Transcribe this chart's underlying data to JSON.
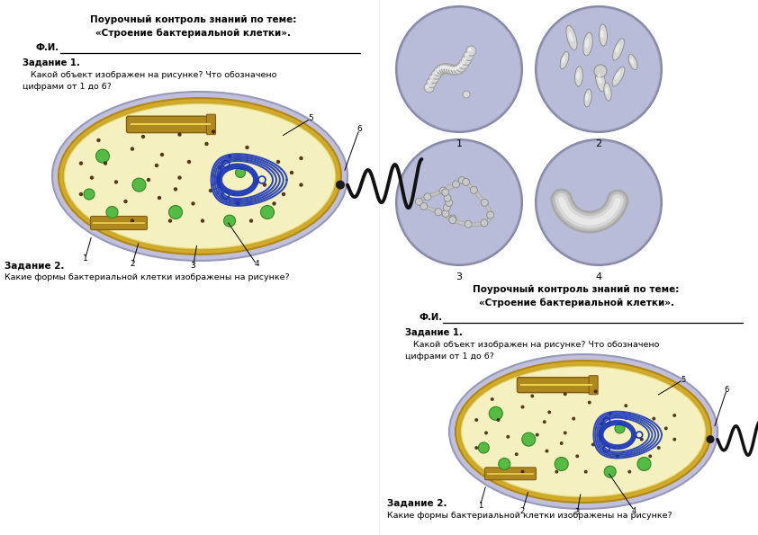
{
  "title_line1": "Поурочный контроль знаний по теме:",
  "title_line2": "«Строение бактериальной клетки».",
  "fi_label": "Ф.И.",
  "zadanie1_title": "Задание 1.",
  "zadanie1_text1": "   Какой объект изображен на рисунке? Что обозначено",
  "zadanie1_text2": "цифрами от 1 до 6?",
  "zadanie2_title": "Задание 2.",
  "zadanie2_text": "Какие формы бактериальной клетки изображены на рисунке?",
  "bg_color": "#ffffff",
  "dna_color": "#1a35b5",
  "flagella_color": "#111111",
  "circle_bg": "#b8bcd8",
  "divider_color": "#aaaaaa"
}
